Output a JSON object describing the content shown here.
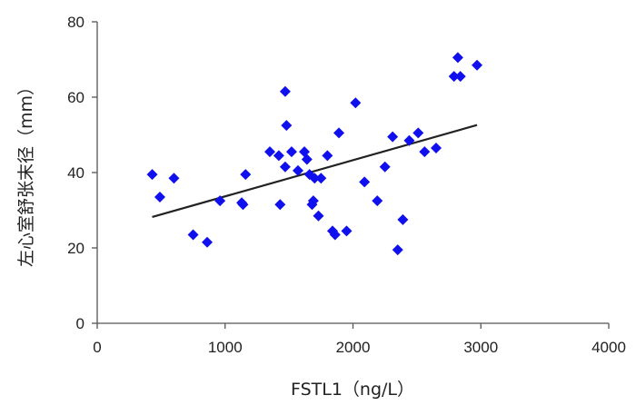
{
  "chart_data": {
    "type": "scatter",
    "title": "",
    "xlabel": "FSTL1（ng/L）",
    "ylabel": "左心室舒张末径（mm）",
    "xlim": [
      0,
      4000
    ],
    "ylim": [
      0,
      80
    ],
    "x_ticks": [
      "0",
      "1000",
      "2000",
      "3000",
      "4000"
    ],
    "y_ticks": [
      "0",
      "20",
      "40",
      "60",
      "80"
    ],
    "grid": false,
    "legend": "none",
    "marker": "diamond",
    "marker_color": "#1010ee",
    "trendline_color": "#222222",
    "series": [
      {
        "points": [
          [
            430,
            39.5
          ],
          [
            490,
            33.5
          ],
          [
            600,
            38.5
          ],
          [
            750,
            23.5
          ],
          [
            860,
            21.5
          ],
          [
            960,
            32.5
          ],
          [
            1130,
            32
          ],
          [
            1140,
            31.5
          ],
          [
            1160,
            39.5
          ],
          [
            1350,
            45.5
          ],
          [
            1420,
            44.5
          ],
          [
            1430,
            31.5
          ],
          [
            1470,
            41.5
          ],
          [
            1470,
            61.5
          ],
          [
            1480,
            52.5
          ],
          [
            1520,
            45.5
          ],
          [
            1570,
            40.5
          ],
          [
            1620,
            45.5
          ],
          [
            1640,
            43.5
          ],
          [
            1660,
            39.5
          ],
          [
            1680,
            31.5
          ],
          [
            1690,
            32.5
          ],
          [
            1700,
            38.5
          ],
          [
            1730,
            28.5
          ],
          [
            1750,
            38.5
          ],
          [
            1800,
            44.5
          ],
          [
            1840,
            24.5
          ],
          [
            1860,
            23.5
          ],
          [
            1890,
            50.5
          ],
          [
            1950,
            24.5
          ],
          [
            2020,
            58.5
          ],
          [
            2090,
            37.5
          ],
          [
            2190,
            32.5
          ],
          [
            2250,
            41.5
          ],
          [
            2310,
            49.5
          ],
          [
            2350,
            19.5
          ],
          [
            2390,
            27.5
          ],
          [
            2440,
            48.5
          ],
          [
            2510,
            50.5
          ],
          [
            2560,
            45.5
          ],
          [
            2650,
            46.5
          ],
          [
            2790,
            65.5
          ],
          [
            2820,
            70.5
          ],
          [
            2840,
            65.5
          ],
          [
            2970,
            68.5
          ]
        ]
      }
    ],
    "trendline": {
      "x": [
        430,
        2970
      ],
      "y": [
        28.2,
        52.6
      ]
    }
  }
}
